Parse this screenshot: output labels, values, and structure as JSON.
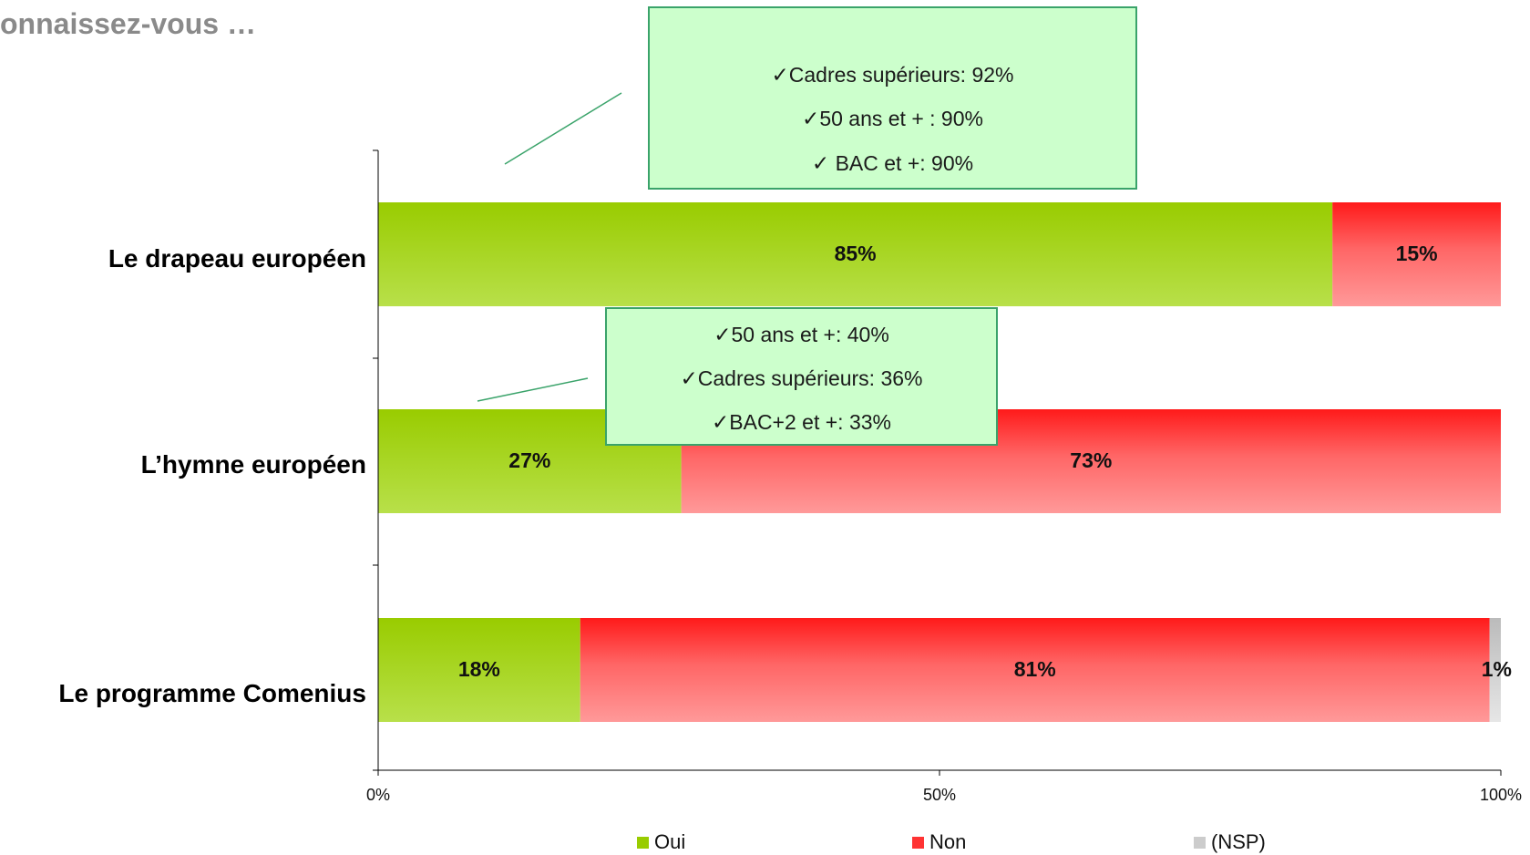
{
  "title": "onnaissez-vous …",
  "chart_data": {
    "type": "bar",
    "orientation": "horizontal",
    "stacked": true,
    "categories": [
      "Le drapeau européen",
      "L’hymne européen",
      "Le programme Comenius"
    ],
    "series": [
      {
        "name": "Oui",
        "values": [
          85,
          27,
          18
        ],
        "labels": [
          "85%",
          "27%",
          "18%"
        ],
        "color": "#99cc00"
      },
      {
        "name": "Non",
        "values": [
          15,
          73,
          81
        ],
        "labels": [
          "15%",
          "73%",
          "81%"
        ],
        "color": "#ff3333"
      },
      {
        "name": "(NSP)",
        "values": [
          0,
          0,
          1
        ],
        "labels": [
          "",
          "",
          "1%"
        ],
        "color": "#cccccc"
      }
    ],
    "xlim": [
      0,
      100
    ],
    "x_ticks": [
      "0%",
      "50%",
      "100%"
    ],
    "legend_position": "bottom",
    "grid": false
  },
  "callouts": [
    {
      "target": "Le drapeau européen",
      "lines": [
        "Cadres supérieurs: 92%",
        "50 ans et + : 90%",
        " BAC et +: 90%"
      ]
    },
    {
      "target": "L’hymne européen",
      "lines": [
        "50 ans et +: 40%",
        "Cadres supérieurs: 36%",
        "BAC+2 et +: 33%"
      ]
    }
  ],
  "colors": {
    "callout_fill": "#ccffcc",
    "callout_border": "#3aa36a",
    "title": "#8a8a8a"
  }
}
